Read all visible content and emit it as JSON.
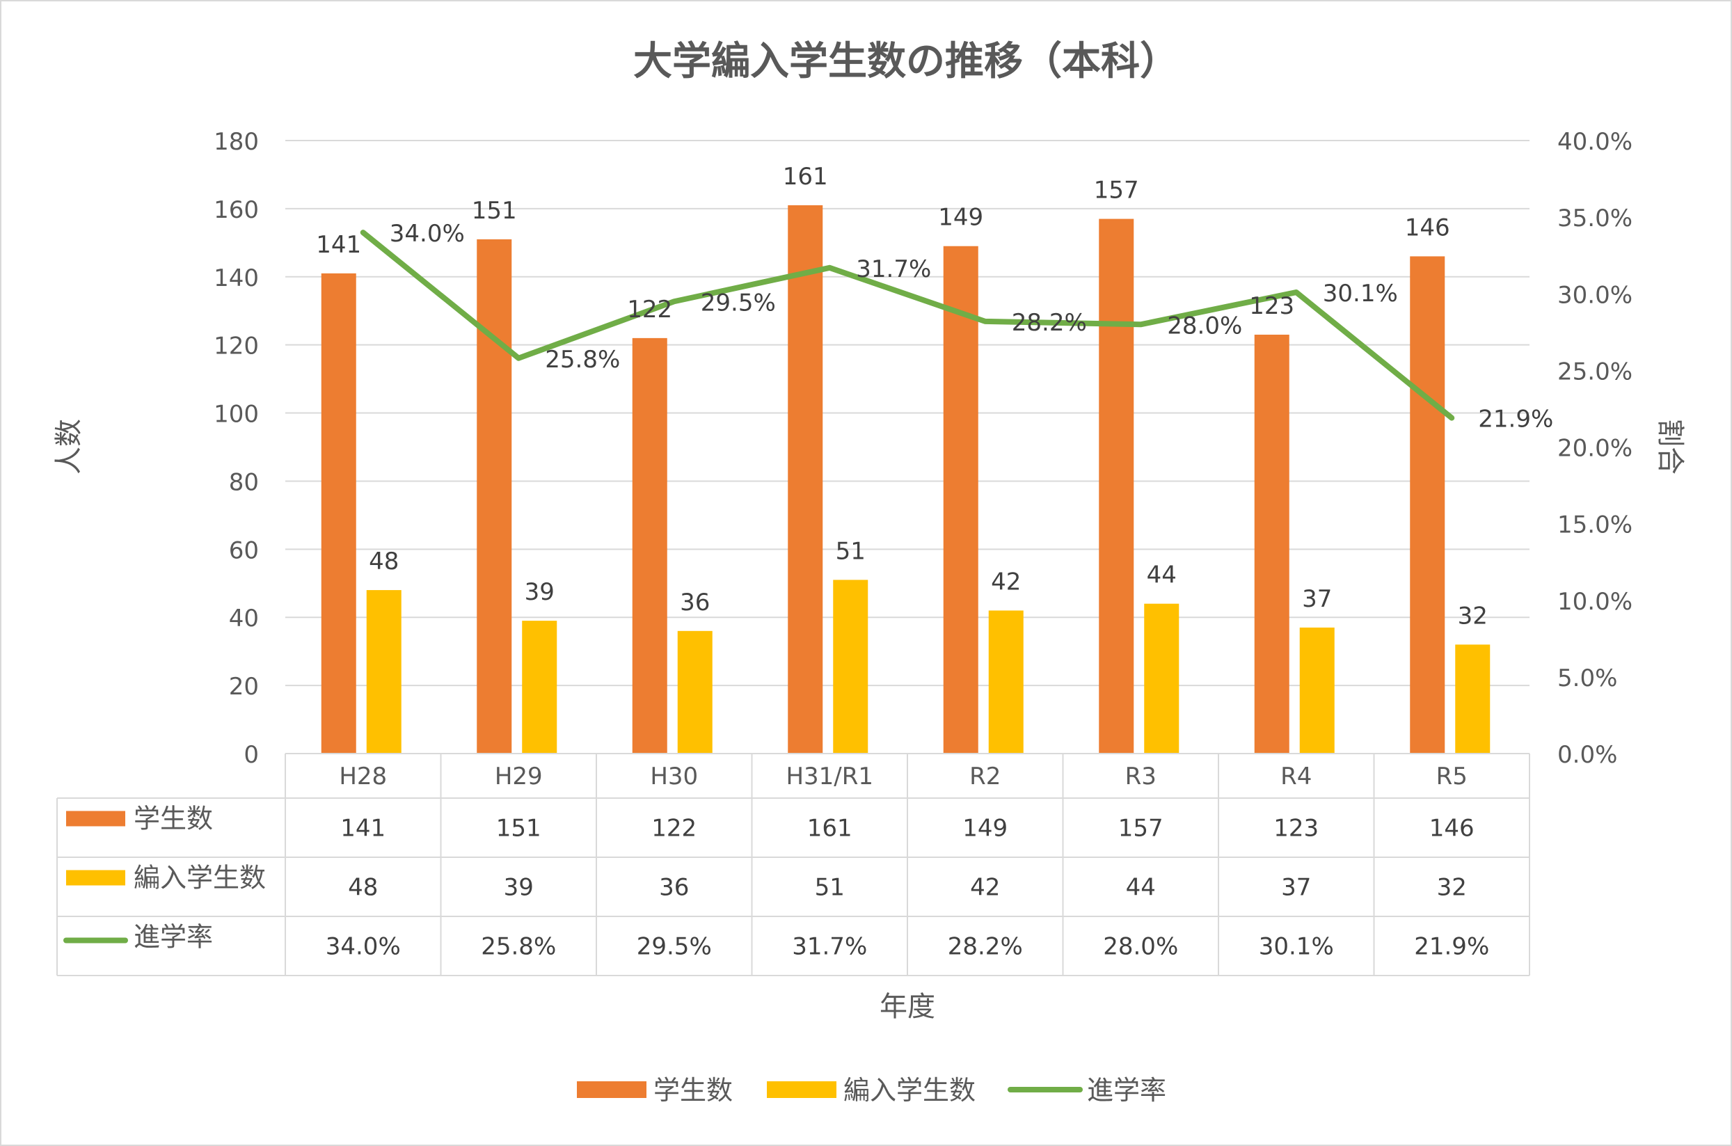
{
  "chart_data": {
    "type": "bar",
    "title": "大学編入学生数の推移（本科）",
    "xlabel": "年度",
    "ylabel": "人数",
    "y2label": "割合",
    "categories": [
      "H28",
      "H29",
      "H30",
      "H31/R1",
      "R2",
      "R3",
      "R4",
      "R5"
    ],
    "ylim": [
      0,
      180
    ],
    "yticks": [
      0,
      20,
      40,
      60,
      80,
      100,
      120,
      140,
      160,
      180
    ],
    "y2lim": [
      0,
      40
    ],
    "y2ticks": [
      "0.0%",
      "5.0%",
      "10.0%",
      "15.0%",
      "20.0%",
      "25.0%",
      "30.0%",
      "35.0%",
      "40.0%"
    ],
    "grid": true,
    "legend": "bottom",
    "data_table": true,
    "series": [
      {
        "name": "学生数",
        "type": "bar",
        "axis": "left",
        "color": "#ed7d31",
        "values": [
          141,
          151,
          122,
          161,
          149,
          157,
          123,
          146
        ],
        "labels": [
          "141",
          "151",
          "122",
          "161",
          "149",
          "157",
          "123",
          "146"
        ]
      },
      {
        "name": "編入学生数",
        "type": "bar",
        "axis": "left",
        "color": "#ffc000",
        "values": [
          48,
          39,
          36,
          51,
          42,
          44,
          37,
          32
        ],
        "labels": [
          "48",
          "39",
          "36",
          "51",
          "42",
          "44",
          "37",
          "32"
        ]
      },
      {
        "name": "進学率",
        "type": "line",
        "axis": "right",
        "color": "#70ad47",
        "values": [
          34.0,
          25.8,
          29.5,
          31.7,
          28.2,
          28.0,
          30.1,
          21.9
        ],
        "labels": [
          "34.0%",
          "25.8%",
          "29.5%",
          "31.7%",
          "28.2%",
          "28.0%",
          "30.1%",
          "21.9%"
        ]
      }
    ]
  }
}
